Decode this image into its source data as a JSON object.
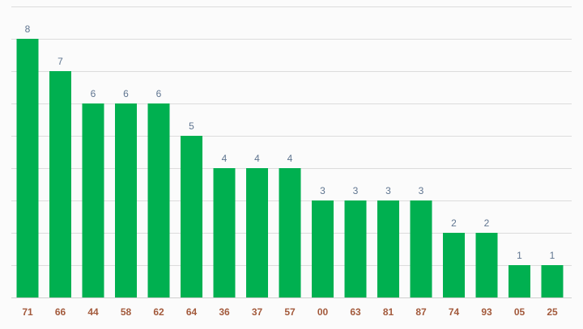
{
  "chart_data": {
    "type": "bar",
    "title": "",
    "xlabel": "",
    "ylabel": "",
    "categories": [
      "71",
      "66",
      "44",
      "58",
      "62",
      "64",
      "36",
      "37",
      "57",
      "00",
      "63",
      "81",
      "87",
      "74",
      "93",
      "05",
      "25"
    ],
    "values": [
      8,
      7,
      6,
      6,
      6,
      5,
      4,
      4,
      4,
      3,
      3,
      3,
      3,
      2,
      2,
      1,
      1
    ],
    "ylim": [
      0,
      9
    ],
    "grid": true,
    "data_labels": true,
    "colors": {
      "bar": "#00b050",
      "value_label": "#5f7590",
      "tick_label": "#a35a3c"
    }
  }
}
